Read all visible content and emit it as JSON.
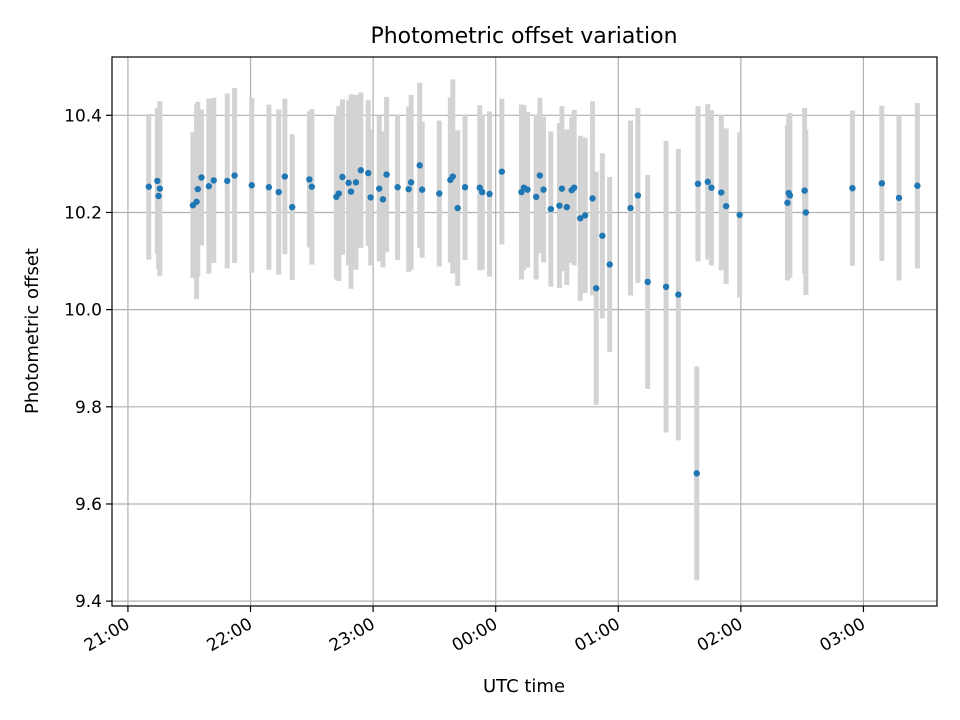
{
  "chart_data": {
    "type": "scatter",
    "title": "Photometric offset variation",
    "xlabel": "UTC time",
    "ylabel": "Photometric offset",
    "x_ticks": [
      "21:00",
      "22:00",
      "23:00",
      "00:00",
      "01:00",
      "02:00",
      "03:00"
    ],
    "x_tick_hours": [
      0,
      1,
      2,
      3,
      4,
      5,
      6
    ],
    "y_ticks": [
      "9.4",
      "9.6",
      "9.8",
      "10.0",
      "10.2",
      "10.4"
    ],
    "y_tick_values": [
      9.4,
      9.6,
      9.8,
      10.0,
      10.2,
      10.4
    ],
    "xlim_hours_after_2100": [
      -0.13,
      6.6
    ],
    "ylim": [
      9.39,
      10.52
    ],
    "grid": true,
    "marker_color": "#1f77b4",
    "errorbar_color": "#d3d3d3",
    "series": [
      {
        "x_hours_after_2100": [
          0.17,
          0.24,
          0.25,
          0.26,
          0.53,
          0.56,
          0.57,
          0.6,
          0.66,
          0.7,
          0.81,
          0.87,
          1.01,
          1.15,
          1.23,
          1.28,
          1.34,
          1.48,
          1.5,
          1.7,
          1.72,
          1.75,
          1.8,
          1.82,
          1.86,
          1.9,
          1.96,
          1.98,
          2.05,
          2.08,
          2.11,
          2.2,
          2.29,
          2.31,
          2.38,
          2.4,
          2.54,
          2.63,
          2.65,
          2.69,
          2.75,
          2.87,
          2.89,
          2.95,
          3.05,
          3.21,
          3.23,
          3.26,
          3.33,
          3.36,
          3.39,
          3.45,
          3.52,
          3.54,
          3.58,
          3.62,
          3.64,
          3.69,
          3.73,
          3.79,
          3.82,
          3.87,
          3.93,
          4.1,
          4.16,
          4.24,
          4.39,
          4.49,
          4.64,
          4.65,
          4.73,
          4.76,
          4.84,
          4.88,
          4.99,
          5.38,
          5.39,
          5.4,
          5.52,
          5.53,
          5.91,
          6.44,
          6.15,
          6.29
        ],
        "y": [
          10.253,
          10.265,
          10.234,
          10.249,
          10.215,
          10.222,
          10.248,
          10.272,
          10.254,
          10.266,
          10.265,
          10.276,
          10.256,
          10.252,
          10.242,
          10.274,
          10.211,
          10.268,
          10.253,
          10.232,
          10.239,
          10.273,
          10.261,
          10.243,
          10.262,
          10.287,
          10.281,
          10.231,
          10.249,
          10.227,
          10.278,
          10.252,
          10.248,
          10.262,
          10.297,
          10.247,
          10.239,
          10.267,
          10.274,
          10.209,
          10.252,
          10.251,
          10.242,
          10.238,
          10.284,
          10.242,
          10.251,
          10.247,
          10.232,
          10.276,
          10.247,
          10.207,
          10.214,
          10.249,
          10.211,
          10.246,
          10.251,
          10.188,
          10.194,
          10.229,
          10.044,
          10.152,
          10.093,
          10.209,
          10.235,
          10.057,
          10.047,
          10.031,
          9.663,
          10.259,
          10.263,
          10.251,
          10.241,
          10.213,
          10.195,
          10.22,
          10.24,
          10.235,
          10.245,
          10.2,
          10.25,
          10.255,
          10.26,
          10.23
        ],
        "yerr": [
          0.15,
          0.15,
          0.15,
          0.18,
          0.15,
          0.2,
          0.18,
          0.14,
          0.18,
          0.17,
          0.18,
          0.18,
          0.18,
          0.17,
          0.17,
          0.16,
          0.15,
          0.14,
          0.16,
          0.17,
          0.18,
          0.16,
          0.17,
          0.2,
          0.18,
          0.16,
          0.15,
          0.14,
          0.15,
          0.14,
          0.16,
          0.15,
          0.17,
          0.18,
          0.17,
          0.14,
          0.15,
          0.17,
          0.2,
          0.16,
          0.15,
          0.17,
          0.16,
          0.17,
          0.15,
          0.18,
          0.17,
          0.16,
          0.17,
          0.16,
          0.15,
          0.16,
          0.17,
          0.17,
          0.16,
          0.15,
          0.16,
          0.17,
          0.16,
          0.2,
          0.24,
          0.17,
          0.18,
          0.18,
          0.18,
          0.22,
          0.3,
          0.3,
          0.22,
          0.16,
          0.16,
          0.16,
          0.16,
          0.16,
          0.17,
          0.16,
          0.16,
          0.17,
          0.17,
          0.17,
          0.16,
          0.17,
          0.16,
          0.17
        ]
      }
    ]
  }
}
